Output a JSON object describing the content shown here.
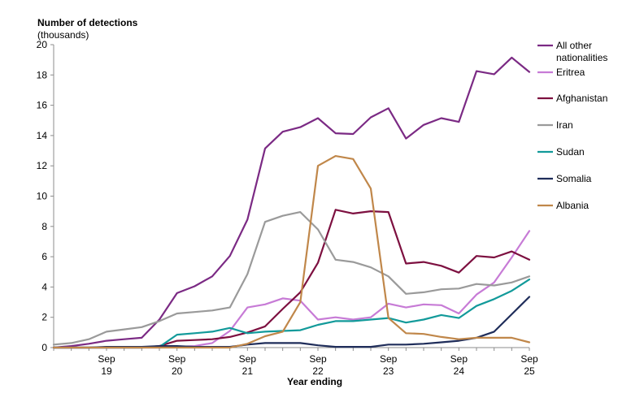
{
  "chart_data": {
    "type": "line",
    "ylabel_line1": "Number of detections",
    "ylabel_line2": "(thousands)",
    "xlabel": "Year ending",
    "ylim": [
      0,
      20
    ],
    "yticks": [
      0,
      2,
      4,
      6,
      8,
      10,
      12,
      14,
      16,
      18,
      20
    ],
    "x_tick_labels": [
      {
        "month": "Sep",
        "year": "19"
      },
      {
        "month": "Sep",
        "year": "20"
      },
      {
        "month": "Sep",
        "year": "21"
      },
      {
        "month": "Sep",
        "year": "22"
      },
      {
        "month": "Sep",
        "year": "23"
      },
      {
        "month": "Sep",
        "year": "24"
      },
      {
        "month": "Sep",
        "year": "25"
      }
    ],
    "grid": false,
    "legend_position": "right",
    "series": [
      {
        "name": "All other nationalities",
        "legend_lines": [
          "All other",
          "nationalities"
        ],
        "color": "#7b2a84",
        "values": [
          0.0,
          0.1,
          0.25,
          0.45,
          0.55,
          0.65,
          1.85,
          3.6,
          4.05,
          4.7,
          6.05,
          8.45,
          13.15,
          14.25,
          14.55,
          15.15,
          14.15,
          14.1,
          15.2,
          15.8,
          13.8,
          14.7,
          15.15,
          14.9,
          18.25,
          18.05,
          19.15,
          18.2
        ]
      },
      {
        "name": "Eritrea",
        "legend_lines": [
          "Eritrea"
        ],
        "color": "#c77bd6",
        "values": [
          0.0,
          0.0,
          0.0,
          0.0,
          0.0,
          0.0,
          0.0,
          0.05,
          0.1,
          0.3,
          1.1,
          2.65,
          2.85,
          3.25,
          3.1,
          1.85,
          2.0,
          1.85,
          2.0,
          2.9,
          2.65,
          2.85,
          2.8,
          2.25,
          3.5,
          4.3,
          5.95,
          7.7
        ]
      },
      {
        "name": "Afghanistan",
        "legend_lines": [
          "Afghanistan"
        ],
        "color": "#7d1040",
        "values": [
          0.0,
          0.0,
          0.0,
          0.0,
          0.0,
          0.0,
          0.1,
          0.45,
          0.5,
          0.55,
          0.7,
          1.0,
          1.4,
          2.55,
          3.65,
          5.6,
          9.1,
          8.85,
          9.0,
          8.95,
          5.55,
          5.65,
          5.4,
          4.95,
          6.05,
          5.95,
          6.35,
          5.8
        ]
      },
      {
        "name": "Iran",
        "legend_lines": [
          "Iran"
        ],
        "color": "#9a9a9a",
        "values": [
          0.2,
          0.3,
          0.55,
          1.05,
          1.2,
          1.35,
          1.75,
          2.25,
          2.35,
          2.45,
          2.65,
          4.85,
          8.3,
          8.7,
          8.95,
          7.8,
          5.8,
          5.65,
          5.3,
          4.7,
          3.55,
          3.65,
          3.85,
          3.9,
          4.2,
          4.1,
          4.3,
          4.7
        ]
      },
      {
        "name": "Sudan",
        "legend_lines": [
          "Sudan"
        ],
        "color": "#129a9a",
        "values": [
          0.0,
          0.0,
          0.0,
          0.0,
          0.0,
          0.0,
          0.05,
          0.85,
          0.95,
          1.05,
          1.3,
          0.95,
          1.05,
          1.1,
          1.15,
          1.5,
          1.75,
          1.75,
          1.85,
          1.95,
          1.65,
          1.85,
          2.15,
          1.95,
          2.75,
          3.2,
          3.75,
          4.5
        ]
      },
      {
        "name": "Somalia",
        "legend_lines": [
          "Somalia"
        ],
        "color": "#1f2d5a",
        "values": [
          0.0,
          0.0,
          0.0,
          0.05,
          0.05,
          0.05,
          0.1,
          0.1,
          0.05,
          0.05,
          0.05,
          0.2,
          0.3,
          0.3,
          0.3,
          0.15,
          0.05,
          0.05,
          0.05,
          0.2,
          0.2,
          0.25,
          0.35,
          0.45,
          0.65,
          1.05,
          2.2,
          3.35
        ]
      },
      {
        "name": "Albania",
        "legend_lines": [
          "Albania"
        ],
        "color": "#c0874a",
        "values": [
          0.0,
          0.0,
          0.0,
          0.0,
          0.0,
          0.0,
          0.0,
          0.0,
          0.0,
          0.0,
          0.0,
          0.25,
          0.75,
          1.05,
          3.0,
          12.0,
          12.65,
          12.45,
          10.5,
          1.95,
          0.95,
          0.9,
          0.7,
          0.55,
          0.65,
          0.65,
          0.65,
          0.35
        ]
      }
    ]
  }
}
